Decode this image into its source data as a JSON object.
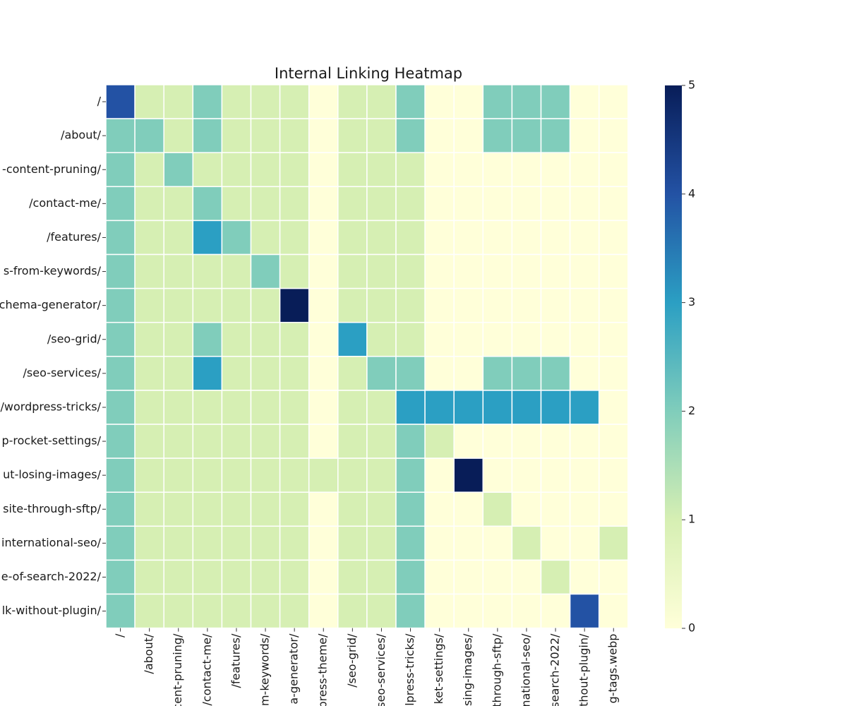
{
  "chart_data": {
    "type": "heatmap",
    "title": "Internal Linking Heatmap",
    "xlabel": "",
    "ylabel": "",
    "row_labels": [
      "/",
      "/about/",
      "-content-pruning/",
      "/contact-me/",
      "/features/",
      "s-from-keywords/",
      "chema-generator/",
      "/seo-grid/",
      "/seo-services/",
      "/wordpress-tricks/",
      "p-rocket-settings/",
      "ut-losing-images/",
      "site-through-sftp/",
      "international-seo/",
      "e-of-search-2022/",
      "lk-without-plugin/"
    ],
    "column_labels": [
      "/",
      "/about/",
      "cent-pruning/",
      "/contact-me/",
      "/features/",
      "m-keywords/",
      "a-generator/",
      "press-theme/",
      "/seo-grid/",
      "seo-services/",
      "lpress-tricks/",
      "ket-settings/",
      "sing-images/",
      "through-sftp/",
      "national-seo/",
      "search-2022/",
      "thout-plugin/",
      "g-tags.webp"
    ],
    "values": [
      [
        4,
        1,
        1,
        2,
        1,
        1,
        1,
        0,
        1,
        1,
        2,
        0,
        0,
        2,
        2,
        2,
        0,
        0
      ],
      [
        2,
        2,
        1,
        2,
        1,
        1,
        1,
        0,
        1,
        1,
        2,
        0,
        0,
        2,
        2,
        2,
        0,
        0
      ],
      [
        2,
        1,
        2,
        1,
        1,
        1,
        1,
        0,
        1,
        1,
        1,
        0,
        0,
        0,
        0,
        0,
        0,
        0
      ],
      [
        2,
        1,
        1,
        2,
        1,
        1,
        1,
        0,
        1,
        1,
        1,
        0,
        0,
        0,
        0,
        0,
        0,
        0
      ],
      [
        2,
        1,
        1,
        3,
        2,
        1,
        1,
        0,
        1,
        1,
        1,
        0,
        0,
        0,
        0,
        0,
        0,
        0
      ],
      [
        2,
        1,
        1,
        1,
        1,
        2,
        1,
        0,
        1,
        1,
        1,
        0,
        0,
        0,
        0,
        0,
        0,
        0
      ],
      [
        2,
        1,
        1,
        1,
        1,
        1,
        5,
        0,
        1,
        1,
        1,
        0,
        0,
        0,
        0,
        0,
        0,
        0
      ],
      [
        2,
        1,
        1,
        2,
        1,
        1,
        1,
        0,
        3,
        1,
        1,
        0,
        0,
        0,
        0,
        0,
        0,
        0
      ],
      [
        2,
        1,
        1,
        3,
        1,
        1,
        1,
        0,
        1,
        2,
        2,
        0,
        0,
        2,
        2,
        2,
        0,
        0
      ],
      [
        2,
        1,
        1,
        1,
        1,
        1,
        1,
        0,
        1,
        1,
        3,
        3,
        3,
        3,
        3,
        3,
        3,
        0
      ],
      [
        2,
        1,
        1,
        1,
        1,
        1,
        1,
        0,
        1,
        1,
        2,
        1,
        0,
        0,
        0,
        0,
        0,
        0
      ],
      [
        2,
        1,
        1,
        1,
        1,
        1,
        1,
        1,
        1,
        1,
        2,
        0,
        5,
        0,
        0,
        0,
        0,
        0
      ],
      [
        2,
        1,
        1,
        1,
        1,
        1,
        1,
        0,
        1,
        1,
        2,
        0,
        0,
        1,
        0,
        0,
        0,
        0
      ],
      [
        2,
        1,
        1,
        1,
        1,
        1,
        1,
        0,
        1,
        1,
        2,
        0,
        0,
        0,
        1,
        0,
        0,
        1
      ],
      [
        2,
        1,
        1,
        1,
        1,
        1,
        1,
        0,
        1,
        1,
        2,
        0,
        0,
        0,
        0,
        1,
        0,
        0
      ],
      [
        2,
        1,
        1,
        1,
        1,
        1,
        1,
        0,
        1,
        1,
        2,
        0,
        0,
        0,
        0,
        0,
        4,
        0
      ]
    ],
    "vmin": 0,
    "vmax": 5,
    "colormap": "YlGnBu",
    "colorbar_ticks": [
      "0",
      "1",
      "2",
      "3",
      "4",
      "5"
    ],
    "grid": true
  }
}
